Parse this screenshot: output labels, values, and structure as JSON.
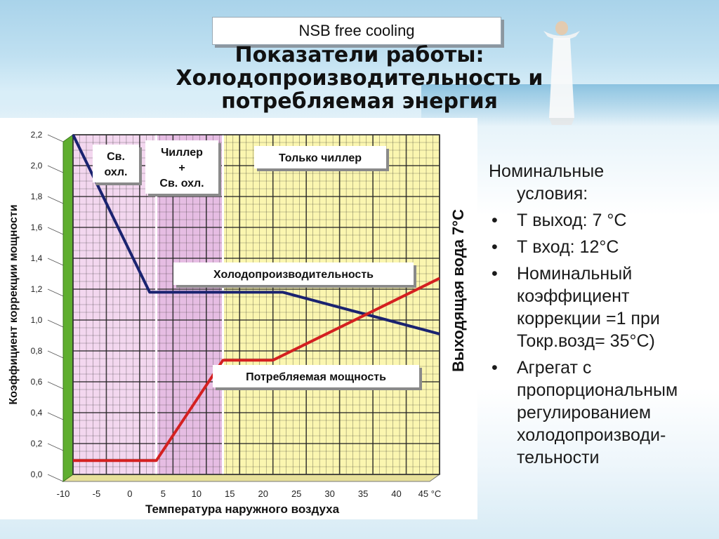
{
  "slide": {
    "label": "NSB free cooling",
    "heading": [
      "Показатели работы:",
      "Холодопроизводительность и",
      "потребляемая энергия"
    ]
  },
  "notes": {
    "intro": [
      "Номинальные",
      "условия:"
    ],
    "bullets": [
      "Т выход: 7 °С",
      "Т вход: 12°С",
      "Номинальный коэффициент коррекции =1 при Токр.возд= 35°С)",
      "Агрегат с пропорциональным регулированием холодопроизводи-тельности"
    ]
  },
  "chart_data": {
    "type": "line",
    "xlabel": "Температура наружного воздуха",
    "ylabel": "Коэффициент коррекции мощности",
    "right_label": "Выходящая вода 7°С",
    "xlim": [
      -10,
      45
    ],
    "ylim": [
      0,
      2.2
    ],
    "x_ticks": [
      "-10",
      "-5",
      "0",
      "5",
      "10",
      "15",
      "20",
      "25",
      "30",
      "35",
      "40",
      "45 °С"
    ],
    "y_ticks": [
      "0,0",
      "0,2",
      "0,4",
      "0,6",
      "0,8",
      "1,0",
      "1,2",
      "1,4",
      "1,6",
      "1,8",
      "2,0",
      "2,2"
    ],
    "grid": true,
    "zones": [
      {
        "name": "Св. охл.",
        "from": -10,
        "to": 2.5,
        "color": "#f3d7ef"
      },
      {
        "name": "Чиллер + Св. охл.",
        "from": 2.5,
        "to": 12.5,
        "color": "#e6bde3"
      },
      {
        "name": "Только чиллер",
        "from": 12.5,
        "to": 45,
        "color": "#fbf6b0"
      }
    ],
    "zone_labels": [
      {
        "lines": [
          "Св.",
          "охл."
        ]
      },
      {
        "lines": [
          "Чиллер",
          "+",
          "Св. охл."
        ]
      },
      {
        "lines": [
          "Только чиллер"
        ]
      }
    ],
    "series": [
      {
        "name": "Холодопроизводительность",
        "color": "#1a2370",
        "x": [
          -10,
          1.5,
          21.5,
          45
        ],
        "y": [
          2.2,
          1.18,
          1.18,
          0.91
        ]
      },
      {
        "name": "Потребляемая мощность",
        "color": "#d42020",
        "x": [
          -10,
          2.5,
          12.5,
          20,
          45
        ],
        "y": [
          0.09,
          0.09,
          0.74,
          0.74,
          1.27
        ]
      }
    ]
  }
}
